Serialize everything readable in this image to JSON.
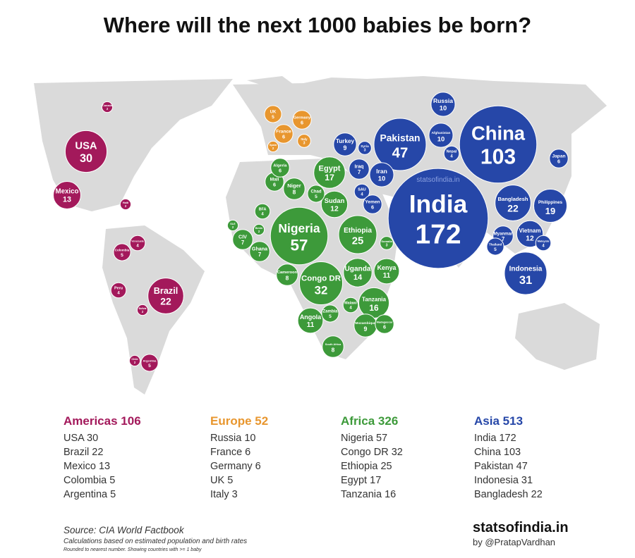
{
  "title": "Where will the next 1000 babies be born?",
  "watermark": "statsofindia.in",
  "regions": [
    {
      "name": "Americas",
      "total": 106,
      "color": "#a3195b",
      "top": [
        {
          "name": "USA",
          "value": 30
        },
        {
          "name": "Brazil",
          "value": 22
        },
        {
          "name": "Mexico",
          "value": 13
        },
        {
          "name": "Colombia",
          "value": 5
        },
        {
          "name": "Argentina",
          "value": 5
        }
      ],
      "bubbles": [
        {
          "name": "USA",
          "value": 30
        },
        {
          "name": "Mexico",
          "value": 13
        },
        {
          "name": "Brazil",
          "value": 22
        },
        {
          "name": "Peru",
          "value": 4
        },
        {
          "name": "Colombia",
          "value": 5
        },
        {
          "name": "Venezuela",
          "value": 4
        },
        {
          "name": "Argentina",
          "value": 5
        },
        {
          "name": "Chile",
          "value": 2
        },
        {
          "name": "Bolivia",
          "value": 2
        },
        {
          "name": "Haiti",
          "value": 2
        },
        {
          "name": "Canada",
          "value": 2
        }
      ]
    },
    {
      "name": "Europe",
      "total": 52,
      "color": "#e8962e",
      "top": [
        {
          "name": "Russia",
          "value": 10
        },
        {
          "name": "France",
          "value": 6
        },
        {
          "name": "Germany",
          "value": 6
        },
        {
          "name": "UK",
          "value": 5
        },
        {
          "name": "Italy",
          "value": 3
        }
      ],
      "bubbles": [
        {
          "name": "UK",
          "value": 5
        },
        {
          "name": "France",
          "value": 6
        },
        {
          "name": "Germany",
          "value": 6
        },
        {
          "name": "Italy",
          "value": 3
        },
        {
          "name": "Spain",
          "value": 2
        }
      ]
    },
    {
      "name": "Africa",
      "total": 326,
      "color": "#3d9a3a",
      "top": [
        {
          "name": "Nigeria",
          "value": 57
        },
        {
          "name": "Congo DR",
          "value": 32
        },
        {
          "name": "Ethiopia",
          "value": 25
        },
        {
          "name": "Egypt",
          "value": 17
        },
        {
          "name": "Tanzania",
          "value": 16
        }
      ],
      "bubbles": [
        {
          "name": "Nigeria",
          "value": 57
        },
        {
          "name": "Congo DR",
          "value": 32
        },
        {
          "name": "Ethiopia",
          "value": 25
        },
        {
          "name": "Egypt",
          "value": 17
        },
        {
          "name": "Tanzania",
          "value": 16
        },
        {
          "name": "Uganda",
          "value": 14
        },
        {
          "name": "Kenya",
          "value": 11
        },
        {
          "name": "Sudan",
          "value": 12
        },
        {
          "name": "Angola",
          "value": 11
        },
        {
          "name": "Niger",
          "value": 8
        },
        {
          "name": "Mali",
          "value": 6
        },
        {
          "name": "Algeria",
          "value": 6
        },
        {
          "name": "Chad",
          "value": 5
        },
        {
          "name": "BFA",
          "value": 4
        },
        {
          "name": "CIV",
          "value": 7
        },
        {
          "name": "Ghana",
          "value": 7
        },
        {
          "name": "Cameroon",
          "value": 8
        },
        {
          "name": "Mozambique",
          "value": 9
        },
        {
          "name": "South Africa",
          "value": 8
        },
        {
          "name": "Zambia",
          "value": 5
        },
        {
          "name": "Malawi",
          "value": 4
        },
        {
          "name": "SLE",
          "value": 2
        },
        {
          "name": "Benin",
          "value": 2
        },
        {
          "name": "Madagascar",
          "value": 6
        },
        {
          "name": "Somalia",
          "value": 3
        }
      ]
    },
    {
      "name": "Asia",
      "total": 513,
      "color": "#2647a8",
      "top": [
        {
          "name": "India",
          "value": 172
        },
        {
          "name": "China",
          "value": 103
        },
        {
          "name": "Pakistan",
          "value": 47
        },
        {
          "name": "Indonesia",
          "value": 31
        },
        {
          "name": "Bangladesh",
          "value": 22
        }
      ],
      "bubbles": [
        {
          "name": "India",
          "value": 172
        },
        {
          "name": "China",
          "value": 103
        },
        {
          "name": "Pakistan",
          "value": 47
        },
        {
          "name": "Indonesia",
          "value": 31
        },
        {
          "name": "Bangladesh",
          "value": 22
        },
        {
          "name": "Philippines",
          "value": 19
        },
        {
          "name": "Vietnam",
          "value": 12
        },
        {
          "name": "Iran",
          "value": 10
        },
        {
          "name": "Afghanistan",
          "value": 10
        },
        {
          "name": "Russia",
          "value": 10
        },
        {
          "name": "Iraq",
          "value": 7
        },
        {
          "name": "Turkey",
          "value": 9
        },
        {
          "name": "Myanmar",
          "value": 7
        },
        {
          "name": "Syria",
          "value": 3
        },
        {
          "name": "SAU",
          "value": 4
        },
        {
          "name": "Yemen",
          "value": 6
        },
        {
          "name": "Nepal",
          "value": 4
        },
        {
          "name": "Japan",
          "value": 6
        },
        {
          "name": "Thailand",
          "value": 5
        },
        {
          "name": "Malaysia",
          "value": 4
        }
      ]
    }
  ],
  "footer": {
    "source": "Source: CIA World Factbook",
    "note1": "Calculations based on estimated population and birth rates",
    "note2": "Rounded to nearest number. Showing countries with >= 1 baby",
    "brand": "statsofindia.in",
    "author": "by @PratapVardhan"
  }
}
